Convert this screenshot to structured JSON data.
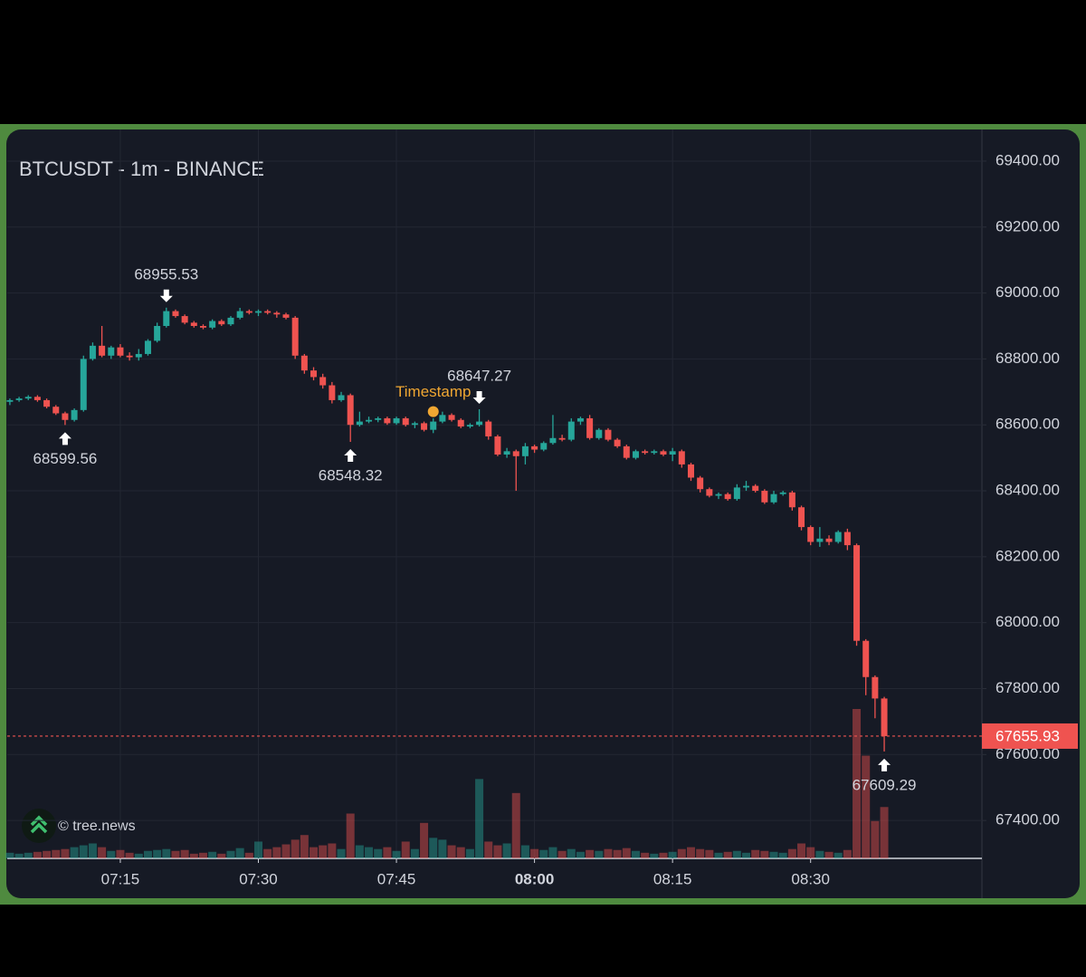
{
  "chart_data": {
    "type": "candlestick",
    "title": "BTCUSDT - 1m - BINANCE",
    "watermark": "© tree.news",
    "x": [
      "07:03",
      "07:04",
      "07:05",
      "07:06",
      "07:07",
      "07:08",
      "07:09",
      "07:10",
      "07:11",
      "07:12",
      "07:13",
      "07:14",
      "07:15",
      "07:16",
      "07:17",
      "07:18",
      "07:19",
      "07:20",
      "07:21",
      "07:22",
      "07:23",
      "07:24",
      "07:25",
      "07:26",
      "07:27",
      "07:28",
      "07:29",
      "07:30",
      "07:31",
      "07:32",
      "07:33",
      "07:34",
      "07:35",
      "07:36",
      "07:37",
      "07:38",
      "07:39",
      "07:40",
      "07:41",
      "07:42",
      "07:43",
      "07:44",
      "07:45",
      "07:46",
      "07:47",
      "07:48",
      "07:49",
      "07:50",
      "07:51",
      "07:52",
      "07:53",
      "07:54",
      "07:55",
      "07:56",
      "07:57",
      "07:58",
      "07:59",
      "08:00",
      "08:01",
      "08:02",
      "08:03",
      "08:04",
      "08:05",
      "08:06",
      "08:07",
      "08:08",
      "08:09",
      "08:10",
      "08:11",
      "08:12",
      "08:13",
      "08:14",
      "08:15",
      "08:16",
      "08:17",
      "08:18",
      "08:19",
      "08:20",
      "08:21",
      "08:22",
      "08:23",
      "08:24",
      "08:25",
      "08:26",
      "08:27",
      "08:28",
      "08:29",
      "08:30",
      "08:31",
      "08:32",
      "08:33",
      "08:34",
      "08:35",
      "08:36",
      "08:37",
      "08:38"
    ],
    "open": [
      68670,
      68675,
      68680,
      68685,
      68675,
      68655,
      68635,
      68615,
      68645,
      68800,
      68840,
      68810,
      68835,
      68810,
      68805,
      68815,
      68855,
      68900,
      68945,
      68930,
      68910,
      68900,
      68895,
      68915,
      68905,
      68925,
      68945,
      68940,
      68945,
      68940,
      68935,
      68925,
      68810,
      68765,
      68745,
      68720,
      68675,
      68690,
      68600,
      68610,
      68615,
      68620,
      68605,
      68620,
      68600,
      68605,
      68585,
      68610,
      68630,
      68615,
      68595,
      68600,
      68610,
      68565,
      68510,
      68520,
      68505,
      68535,
      68525,
      68545,
      68560,
      68555,
      68610,
      68620,
      68560,
      68585,
      68555,
      68535,
      68500,
      68520,
      68515,
      68520,
      68510,
      68520,
      68480,
      68440,
      68405,
      68385,
      68390,
      68375,
      68410,
      68415,
      68400,
      68365,
      68390,
      68395,
      68350,
      68290,
      68245,
      68255,
      68245,
      68275,
      68235,
      67945,
      67835,
      67770
    ],
    "high": [
      68680,
      68685,
      68690,
      68690,
      68680,
      68660,
      68640,
      68650,
      68810,
      68850,
      68900,
      68840,
      68845,
      68820,
      68830,
      68860,
      68910,
      68955.53,
      68950,
      68935,
      68915,
      68905,
      68920,
      68920,
      68930,
      68955,
      68950,
      68950,
      68950,
      68945,
      68940,
      68930,
      68815,
      68775,
      68755,
      68730,
      68700,
      68695,
      68640,
      68625,
      68625,
      68625,
      68625,
      68625,
      68610,
      68610,
      68620,
      68640,
      68635,
      68620,
      68605,
      68647.27,
      68615,
      68570,
      68530,
      68525,
      68545,
      68540,
      68550,
      68630,
      68570,
      68620,
      68625,
      68630,
      68590,
      68590,
      68560,
      68540,
      68525,
      68525,
      68525,
      68525,
      68530,
      68525,
      68485,
      68445,
      68410,
      68395,
      68395,
      68420,
      68430,
      68420,
      68405,
      68400,
      68400,
      68400,
      68355,
      68295,
      68290,
      68265,
      68280,
      68285,
      68240,
      67950,
      67840,
      67775
    ],
    "low": [
      68660,
      68670,
      68675,
      68670,
      68650,
      68630,
      68599.56,
      68610,
      68640,
      68795,
      68805,
      68800,
      68805,
      68795,
      68795,
      68810,
      68850,
      68895,
      68925,
      68905,
      68895,
      68890,
      68890,
      68900,
      68900,
      68920,
      68935,
      68930,
      68935,
      68925,
      68920,
      68800,
      68755,
      68735,
      68710,
      68665,
      68670,
      68548.32,
      68595,
      68605,
      68608,
      68600,
      68600,
      68595,
      68590,
      68580,
      68575,
      68605,
      68610,
      68590,
      68590,
      68595,
      68555,
      68505,
      68500,
      68400,
      68480,
      68515,
      68520,
      68540,
      68550,
      68550,
      68600,
      68555,
      68555,
      68550,
      68530,
      68495,
      68495,
      68510,
      68510,
      68505,
      68490,
      68470,
      68430,
      68395,
      68380,
      68375,
      68370,
      68370,
      68400,
      68395,
      68360,
      68360,
      68385,
      68340,
      68280,
      68235,
      68230,
      68235,
      68240,
      68220,
      67930,
      67780,
      67710,
      67609.29
    ],
    "close": [
      68675,
      68680,
      68685,
      68675,
      68655,
      68635,
      68615,
      68645,
      68800,
      68840,
      68810,
      68835,
      68810,
      68805,
      68815,
      68855,
      68900,
      68945,
      68930,
      68910,
      68900,
      68895,
      68915,
      68905,
      68925,
      68945,
      68940,
      68945,
      68940,
      68935,
      68925,
      68810,
      68765,
      68745,
      68720,
      68675,
      68690,
      68600,
      68610,
      68615,
      68620,
      68605,
      68620,
      68600,
      68605,
      68585,
      68610,
      68630,
      68615,
      68595,
      68600,
      68610,
      68565,
      68510,
      68520,
      68505,
      68535,
      68525,
      68545,
      68560,
      68555,
      68610,
      68620,
      68560,
      68585,
      68555,
      68535,
      68500,
      68520,
      68515,
      68520,
      68510,
      68520,
      68480,
      68440,
      68405,
      68385,
      68390,
      68375,
      68410,
      68415,
      68400,
      68365,
      68390,
      68395,
      68350,
      68290,
      68245,
      68255,
      68245,
      68275,
      68235,
      67945,
      67835,
      67770,
      67655.93
    ],
    "volume": [
      6,
      5,
      6,
      7,
      8,
      9,
      10,
      12,
      14,
      16,
      12,
      8,
      9,
      6,
      5,
      8,
      9,
      10,
      8,
      9,
      5,
      6,
      7,
      5,
      8,
      11,
      6,
      18,
      10,
      12,
      15,
      20,
      25,
      12,
      14,
      16,
      10,
      48,
      14,
      12,
      10,
      12,
      8,
      18,
      10,
      38,
      22,
      20,
      14,
      12,
      10,
      85,
      18,
      14,
      16,
      70,
      14,
      10,
      9,
      12,
      8,
      10,
      7,
      9,
      8,
      10,
      9,
      11,
      8,
      6,
      5,
      6,
      7,
      10,
      12,
      10,
      9,
      6,
      7,
      8,
      6,
      9,
      8,
      7,
      6,
      10,
      16,
      12,
      8,
      7,
      6,
      9,
      160,
      110,
      40,
      55
    ],
    "up_color": "#26a69a",
    "down_color": "#ef5350",
    "ylim": [
      67285,
      69496
    ],
    "yticks": [
      {
        "value": 67400,
        "label": "67400.00"
      },
      {
        "value": 67600,
        "label": "67600.00"
      },
      {
        "value": 67800,
        "label": "67800.00"
      },
      {
        "value": 68000,
        "label": "68000.00"
      },
      {
        "value": 68200,
        "label": "68200.00"
      },
      {
        "value": 68400,
        "label": "68400.00"
      },
      {
        "value": 68600,
        "label": "68600.00"
      },
      {
        "value": 68800,
        "label": "68800.00"
      },
      {
        "value": 69000,
        "label": "69000.00"
      },
      {
        "value": 69200,
        "label": "69200.00"
      },
      {
        "value": 69400,
        "label": "69400.00"
      }
    ],
    "xticks": [
      "07:15",
      "07:30",
      "07:45",
      "08:00",
      "08:15",
      "08:30"
    ],
    "grid": true,
    "markers": [
      {
        "x": "07:09",
        "at": "low"
      },
      {
        "x": "07:20",
        "at": "high"
      },
      {
        "x": "07:40",
        "at": "low"
      },
      {
        "x": "07:54",
        "at": "high"
      },
      {
        "x": "08:38",
        "at": "low"
      }
    ],
    "annotation": {
      "text": "Timestamp",
      "x": "07:49",
      "y": 68640,
      "color": "#f0a732"
    },
    "last_price_line": true
  }
}
